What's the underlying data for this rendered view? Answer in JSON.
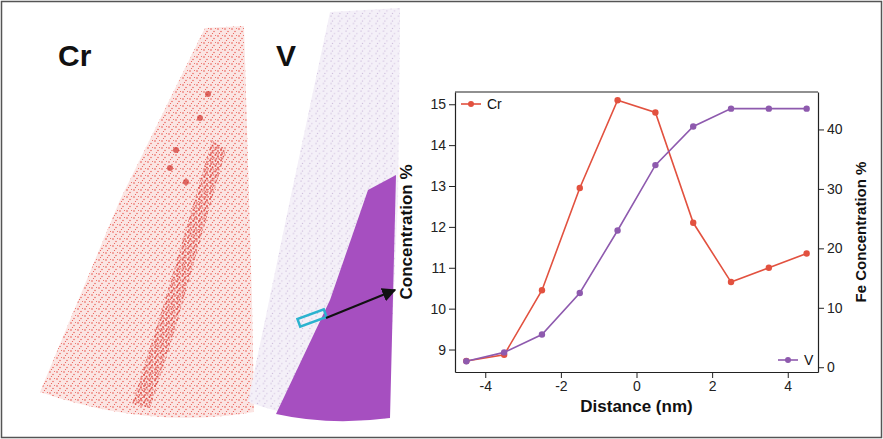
{
  "images": [
    {
      "label": "Cr"
    },
    {
      "label": "V"
    }
  ],
  "chart_data": {
    "type": "line",
    "xlabel": "Distance (nm)",
    "ylabel": "Concentration %",
    "y2label": "Fe Concentration %",
    "x": [
      -4.5,
      -3.5,
      -2.5,
      -1.5,
      -0.5,
      0.5,
      1.5,
      2.5,
      3.5,
      4.5
    ],
    "series": [
      {
        "name": "Cr",
        "color": "#e2513f",
        "marker": "circle",
        "values": [
          8.72,
          8.87,
          10.45,
          12.95,
          15.1,
          14.8,
          12.1,
          10.65,
          11.0,
          11.35
        ]
      },
      {
        "name": "V",
        "color": "#8e5aae",
        "marker": "circle",
        "axis": "y2",
        "values": [
          1.0,
          2.5,
          5.5,
          12.5,
          23.0,
          34.0,
          40.5,
          43.5,
          43.5,
          43.5
        ]
      }
    ],
    "xlim": [
      -4.8,
      4.8
    ],
    "xticks": [
      -4,
      -2,
      0,
      2,
      4
    ],
    "ylim": [
      8.45,
      15.3
    ],
    "yticks": [
      9,
      10,
      11,
      12,
      13,
      14,
      15
    ],
    "y2lim": [
      -0.8,
      46.3
    ],
    "y2ticks": [
      0,
      10,
      20,
      30,
      40
    ]
  }
}
